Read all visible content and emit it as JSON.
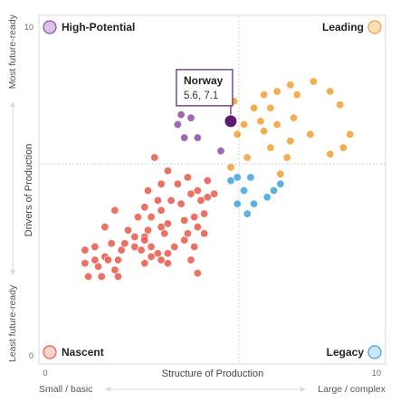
{
  "chart_data": {
    "type": "scatter",
    "xlabel": "Structure of Production",
    "ylabel": "Drivers of Production",
    "xlim": [
      0,
      10
    ],
    "ylim": [
      0,
      10
    ],
    "x_ticks": [
      "0",
      "10"
    ],
    "y_ticks": [
      "0",
      "10"
    ],
    "x_axis_ends": {
      "low": "Small / basic",
      "high": "Large / complex"
    },
    "y_axis_ends": {
      "low": "Least future-ready",
      "high": "Most future-ready"
    },
    "midlines": {
      "x": 5,
      "y": 5
    },
    "quadrants": [
      {
        "name": "High-Potential",
        "position": "top-left",
        "color": "#8e4fa3"
      },
      {
        "name": "Leading",
        "position": "top-right",
        "color": "#f0a033"
      },
      {
        "name": "Nascent",
        "position": "bottom-left",
        "color": "#e8584a"
      },
      {
        "name": "Legacy",
        "position": "bottom-right",
        "color": "#3fa3dc"
      }
    ],
    "highlight": {
      "name": "Norway",
      "label": "5.6, 7.1",
      "x": 5.6,
      "y": 7.1,
      "color": "#5b1c74"
    },
    "series": [
      {
        "name": "High-Potential",
        "color": "#8e4fa3",
        "points": [
          [
            4.1,
            7.3
          ],
          [
            4.0,
            7.0
          ],
          [
            4.4,
            7.2
          ],
          [
            4.2,
            6.6
          ],
          [
            4.6,
            6.6
          ],
          [
            5.3,
            6.2
          ]
        ]
      },
      {
        "name": "Leading",
        "color": "#f0a033",
        "points": [
          [
            5.7,
            7.7
          ],
          [
            6.3,
            7.5
          ],
          [
            6.6,
            7.9
          ],
          [
            7.0,
            8.0
          ],
          [
            7.4,
            8.2
          ],
          [
            7.6,
            7.9
          ],
          [
            8.1,
            8.3
          ],
          [
            8.6,
            8.0
          ],
          [
            8.9,
            7.6
          ],
          [
            6.8,
            7.5
          ],
          [
            7.5,
            7.2
          ],
          [
            7.0,
            7.0
          ],
          [
            6.5,
            7.1
          ],
          [
            6.0,
            7.0
          ],
          [
            9.2,
            6.7
          ],
          [
            9.0,
            6.3
          ],
          [
            5.8,
            6.7
          ],
          [
            6.6,
            6.8
          ],
          [
            7.4,
            6.5
          ],
          [
            8.0,
            6.7
          ],
          [
            6.8,
            6.3
          ],
          [
            6.1,
            6.0
          ],
          [
            7.3,
            6.0
          ],
          [
            8.6,
            6.1
          ],
          [
            5.6,
            5.7
          ],
          [
            7.1,
            5.5
          ]
        ]
      },
      {
        "name": "Legacy",
        "color": "#3fa3dc",
        "points": [
          [
            5.6,
            5.3
          ],
          [
            5.8,
            5.4
          ],
          [
            6.2,
            5.4
          ],
          [
            6.0,
            5.0
          ],
          [
            7.1,
            5.2
          ],
          [
            6.9,
            5.0
          ],
          [
            5.8,
            4.6
          ],
          [
            6.3,
            4.6
          ],
          [
            6.7,
            4.8
          ],
          [
            6.1,
            4.3
          ]
        ]
      },
      {
        "name": "Nascent",
        "color": "#e8584a",
        "points": [
          [
            3.3,
            6.0
          ],
          [
            3.7,
            5.6
          ],
          [
            3.5,
            5.2
          ],
          [
            4.3,
            5.4
          ],
          [
            3.1,
            5.0
          ],
          [
            4.0,
            5.2
          ],
          [
            4.9,
            5.3
          ],
          [
            5.1,
            4.9
          ],
          [
            4.6,
            5.0
          ],
          [
            4.7,
            4.7
          ],
          [
            4.9,
            4.8
          ],
          [
            4.4,
            4.9
          ],
          [
            2.1,
            4.4
          ],
          [
            3.0,
            4.5
          ],
          [
            2.8,
            4.2
          ],
          [
            3.2,
            4.2
          ],
          [
            3.5,
            4.4
          ],
          [
            3.7,
            4.0
          ],
          [
            4.2,
            4.1
          ],
          [
            4.5,
            4.2
          ],
          [
            4.8,
            4.3
          ],
          [
            4.1,
            4.6
          ],
          [
            3.8,
            4.7
          ],
          [
            3.4,
            4.7
          ],
          [
            3.1,
            3.8
          ],
          [
            3.5,
            3.9
          ],
          [
            1.8,
            3.9
          ],
          [
            2.5,
            3.8
          ],
          [
            2.7,
            3.6
          ],
          [
            3.0,
            3.6
          ],
          [
            3.6,
            3.7
          ],
          [
            4.3,
            3.7
          ],
          [
            4.6,
            3.9
          ],
          [
            2.0,
            3.4
          ],
          [
            2.4,
            3.4
          ],
          [
            2.7,
            3.3
          ],
          [
            3.0,
            3.5
          ],
          [
            3.2,
            3.3
          ],
          [
            3.9,
            3.3
          ],
          [
            4.2,
            3.5
          ],
          [
            4.8,
            3.7
          ],
          [
            1.5,
            3.3
          ],
          [
            1.8,
            3.0
          ],
          [
            2.3,
            3.2
          ],
          [
            2.9,
            3.2
          ],
          [
            3.4,
            3.1
          ],
          [
            3.7,
            3.1
          ],
          [
            4.5,
            3.3
          ],
          [
            1.2,
            3.2
          ],
          [
            1.5,
            2.9
          ],
          [
            1.9,
            2.9
          ],
          [
            3.2,
            3.0
          ],
          [
            3.5,
            2.9
          ],
          [
            4.4,
            2.9
          ],
          [
            1.2,
            2.8
          ],
          [
            1.6,
            2.7
          ],
          [
            2.1,
            2.6
          ],
          [
            2.2,
            2.9
          ],
          [
            3.0,
            2.8
          ],
          [
            3.7,
            2.8
          ],
          [
            4.6,
            2.5
          ],
          [
            1.3,
            2.4
          ],
          [
            1.7,
            2.4
          ],
          [
            2.2,
            2.4
          ]
        ]
      }
    ]
  }
}
